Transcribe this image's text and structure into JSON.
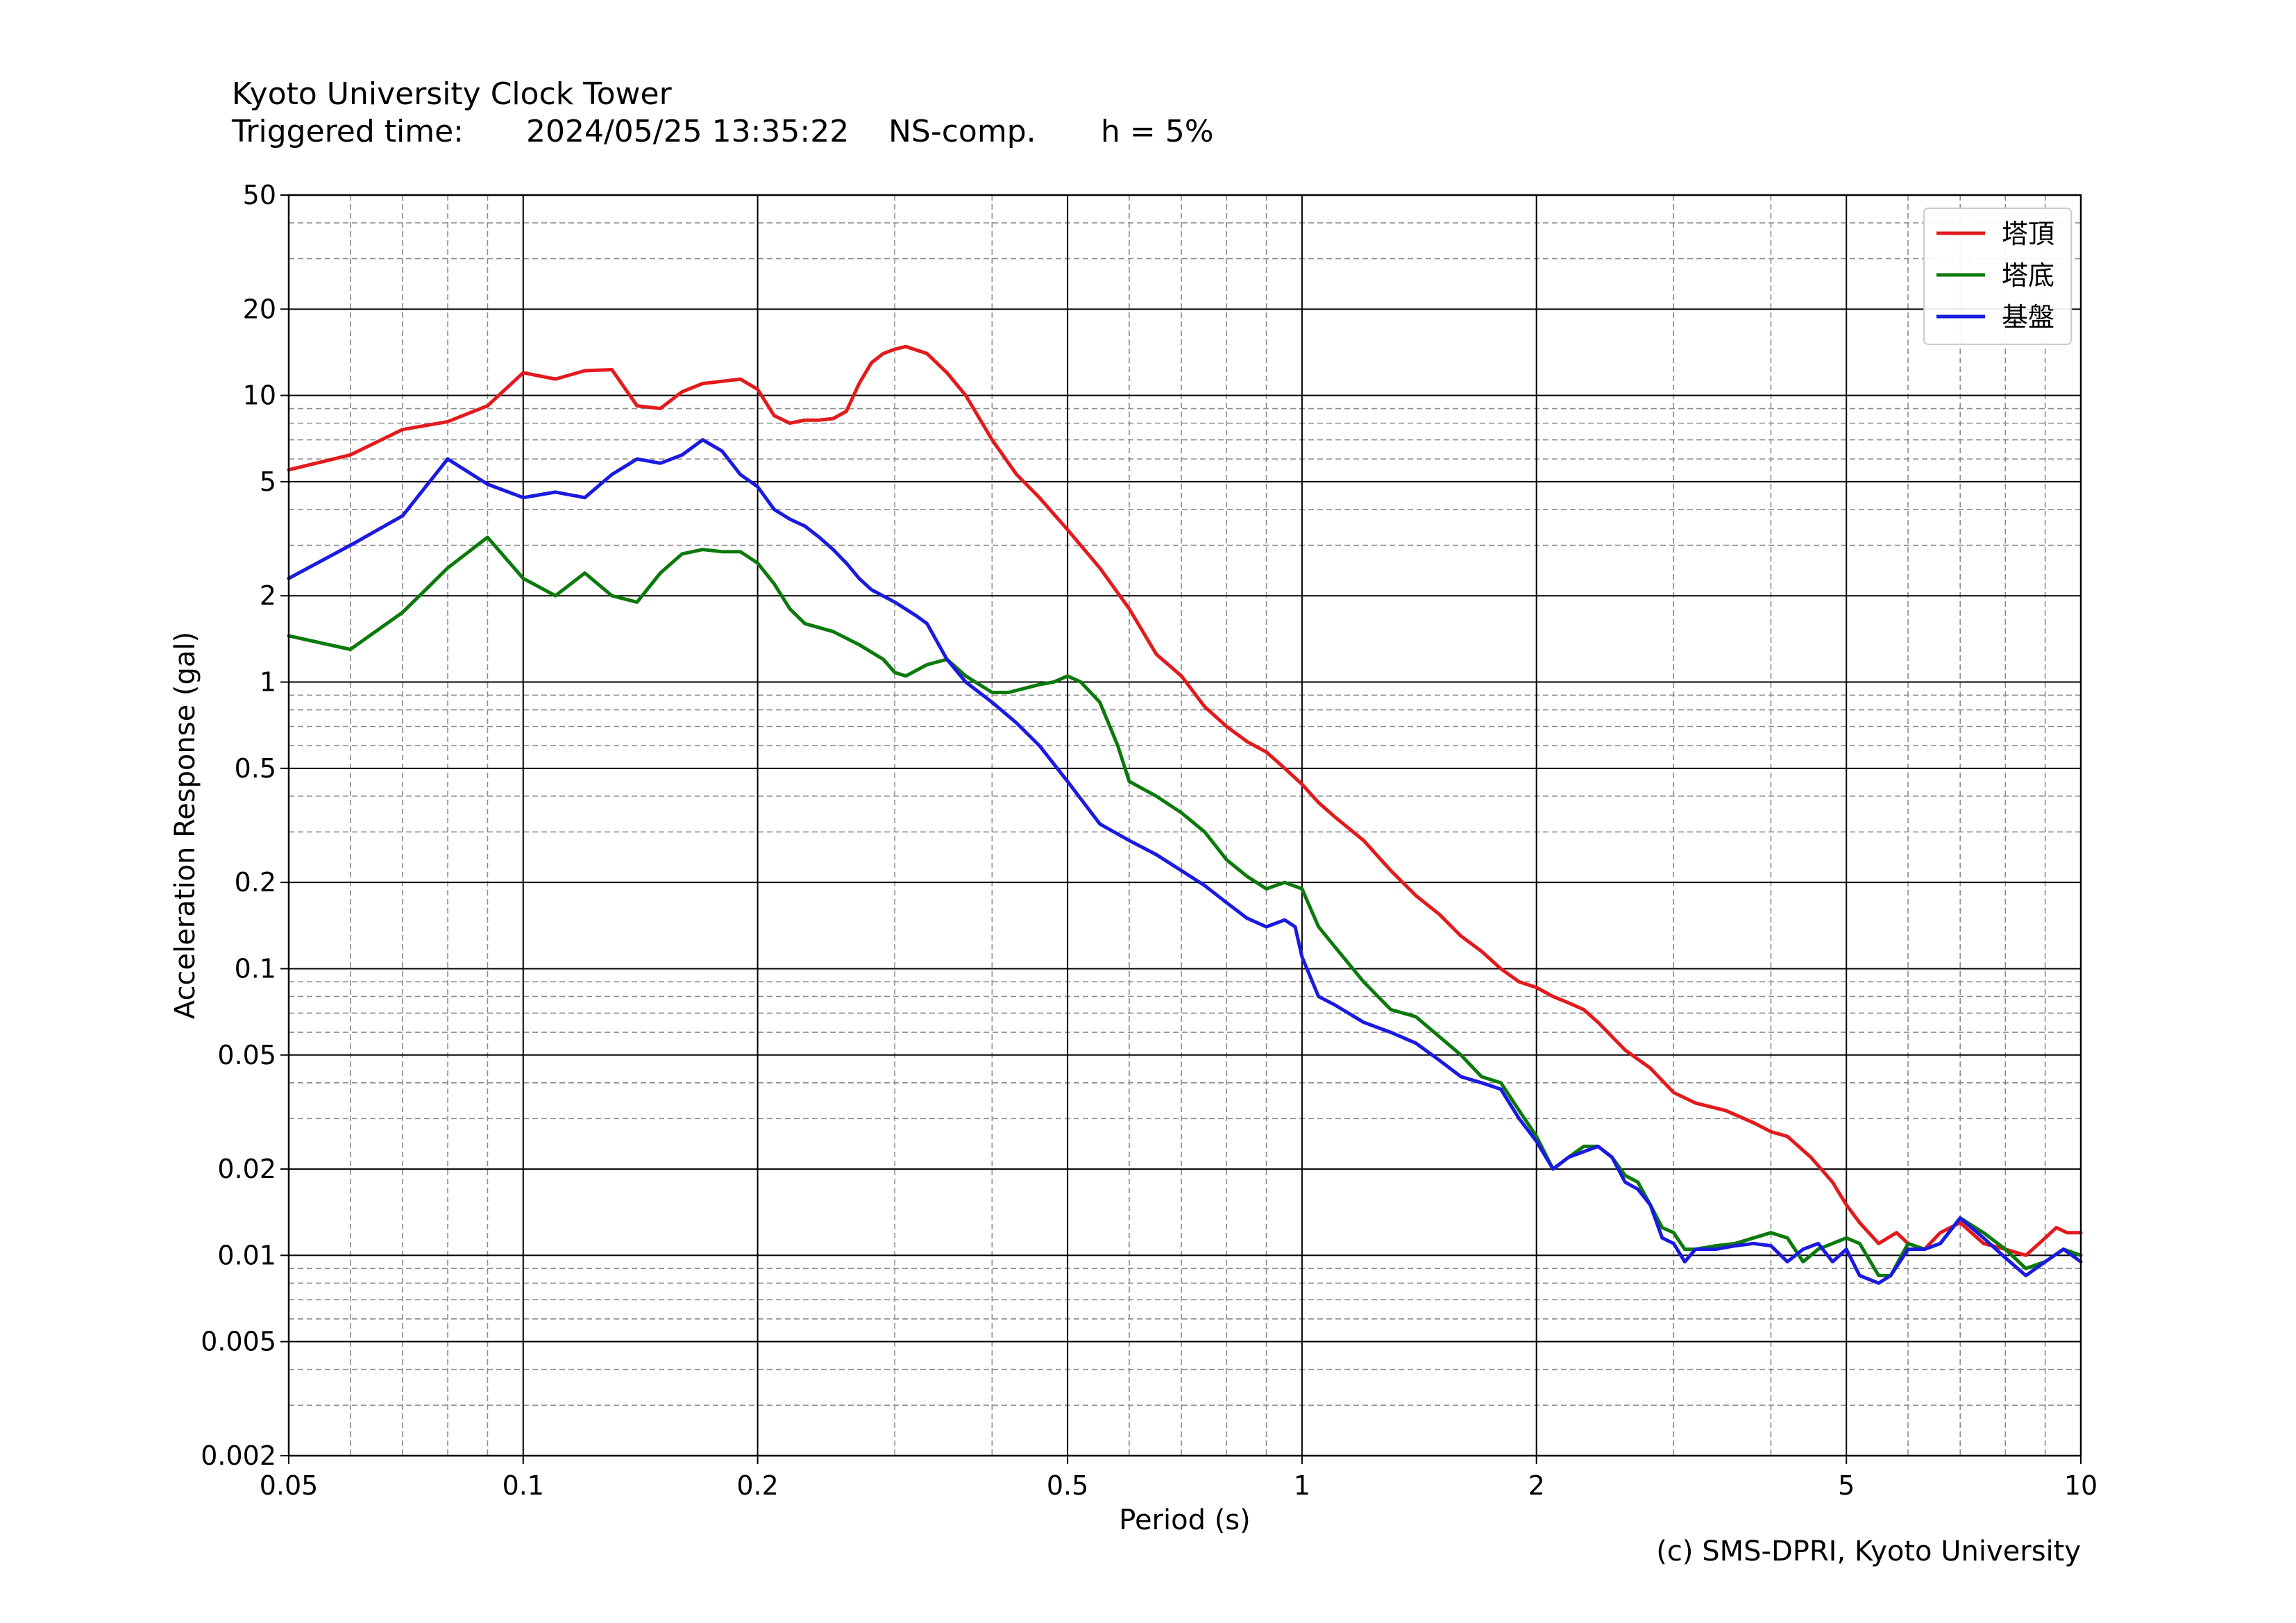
{
  "header": {
    "title": "Kyoto University Clock Tower",
    "triggered_label": "Triggered time:",
    "triggered_value": "2024/05/25 13:35:22",
    "component": "NS-comp.",
    "damping": "h = 5%"
  },
  "footer": {
    "credit": "(c) SMS-DPRI, Kyoto University"
  },
  "chart_data": {
    "type": "line",
    "xlabel": "Period (s)",
    "ylabel": "Acceleration Response (gal)",
    "xscale": "log",
    "yscale": "log",
    "xlim": [
      0.05,
      10
    ],
    "ylim": [
      0.002,
      50
    ],
    "xticks": [
      0.05,
      0.1,
      0.2,
      0.5,
      1,
      2,
      5,
      10
    ],
    "xtick_labels": [
      "0.05",
      "0.1",
      "0.2",
      "0.5",
      "1",
      "2",
      "5",
      "10"
    ],
    "yticks": [
      0.002,
      0.005,
      0.01,
      0.02,
      0.05,
      0.1,
      0.2,
      0.5,
      1,
      2,
      5,
      10,
      20,
      50
    ],
    "ytick_labels": [
      "0.002",
      "0.005",
      "0.01",
      "0.02",
      "0.05",
      "0.1",
      "0.2",
      "0.5",
      "1",
      "2",
      "5",
      "10",
      "20",
      "50"
    ],
    "grid": true,
    "legend": "top-right",
    "series": [
      {
        "name": "塔頂",
        "color": "#e31a1c",
        "x": [
          0.05,
          0.06,
          0.07,
          0.08,
          0.09,
          0.1,
          0.11,
          0.12,
          0.13,
          0.14,
          0.15,
          0.16,
          0.17,
          0.18,
          0.19,
          0.2,
          0.21,
          0.22,
          0.23,
          0.24,
          0.25,
          0.26,
          0.27,
          0.28,
          0.29,
          0.3,
          0.31,
          0.33,
          0.35,
          0.37,
          0.4,
          0.43,
          0.46,
          0.5,
          0.55,
          0.6,
          0.65,
          0.7,
          0.75,
          0.8,
          0.85,
          0.9,
          0.95,
          1.0,
          1.05,
          1.1,
          1.2,
          1.3,
          1.4,
          1.5,
          1.6,
          1.7,
          1.8,
          1.9,
          2.0,
          2.1,
          2.2,
          2.3,
          2.4,
          2.5,
          2.6,
          2.8,
          3.0,
          3.2,
          3.5,
          3.8,
          4.0,
          4.2,
          4.5,
          4.8,
          5.0,
          5.2,
          5.5,
          5.8,
          6.0,
          6.3,
          6.6,
          7.0,
          7.5,
          8.0,
          8.5,
          9.0,
          9.3,
          9.6,
          10.0
        ],
        "y": [
          5.5,
          6.2,
          7.6,
          8.1,
          9.2,
          12.0,
          11.4,
          12.2,
          12.3,
          9.2,
          9.0,
          10.3,
          11.0,
          11.2,
          11.4,
          10.5,
          8.5,
          8.0,
          8.2,
          8.2,
          8.3,
          8.8,
          11.0,
          13.0,
          14.0,
          14.5,
          14.8,
          14.0,
          12.0,
          10.0,
          7.0,
          5.3,
          4.4,
          3.4,
          2.5,
          1.8,
          1.25,
          1.05,
          0.82,
          0.7,
          0.62,
          0.57,
          0.5,
          0.44,
          0.38,
          0.34,
          0.28,
          0.22,
          0.18,
          0.155,
          0.13,
          0.115,
          0.1,
          0.09,
          0.086,
          0.08,
          0.076,
          0.072,
          0.065,
          0.058,
          0.052,
          0.045,
          0.037,
          0.034,
          0.032,
          0.029,
          0.027,
          0.026,
          0.022,
          0.018,
          0.015,
          0.013,
          0.011,
          0.012,
          0.011,
          0.0105,
          0.012,
          0.013,
          0.011,
          0.0105,
          0.01,
          0.0115,
          0.0125,
          0.012,
          0.012
        ]
      },
      {
        "name": "塔底",
        "color": "#0b7a0b",
        "x": [
          0.05,
          0.06,
          0.07,
          0.08,
          0.09,
          0.1,
          0.11,
          0.12,
          0.13,
          0.14,
          0.15,
          0.16,
          0.17,
          0.18,
          0.19,
          0.2,
          0.21,
          0.22,
          0.23,
          0.25,
          0.27,
          0.29,
          0.3,
          0.31,
          0.33,
          0.35,
          0.37,
          0.4,
          0.42,
          0.44,
          0.46,
          0.48,
          0.5,
          0.52,
          0.55,
          0.58,
          0.6,
          0.65,
          0.7,
          0.75,
          0.8,
          0.85,
          0.9,
          0.95,
          1.0,
          1.05,
          1.1,
          1.2,
          1.3,
          1.4,
          1.5,
          1.6,
          1.7,
          1.8,
          1.9,
          2.0,
          2.1,
          2.2,
          2.3,
          2.4,
          2.5,
          2.6,
          2.7,
          2.8,
          2.9,
          3.0,
          3.1,
          3.2,
          3.4,
          3.6,
          3.8,
          4.0,
          4.2,
          4.4,
          4.6,
          4.8,
          5.0,
          5.2,
          5.5,
          5.7,
          6.0,
          6.3,
          6.6,
          7.0,
          7.5,
          8.0,
          8.5,
          9.0,
          9.5,
          10.0
        ],
        "y": [
          1.45,
          1.3,
          1.75,
          2.5,
          3.2,
          2.3,
          2.0,
          2.4,
          2.0,
          1.9,
          2.4,
          2.8,
          2.9,
          2.85,
          2.85,
          2.6,
          2.2,
          1.8,
          1.6,
          1.5,
          1.35,
          1.2,
          1.08,
          1.05,
          1.15,
          1.2,
          1.05,
          0.92,
          0.92,
          0.95,
          0.98,
          1.0,
          1.05,
          1.0,
          0.85,
          0.6,
          0.45,
          0.4,
          0.35,
          0.3,
          0.24,
          0.21,
          0.19,
          0.2,
          0.19,
          0.14,
          0.12,
          0.09,
          0.072,
          0.068,
          0.058,
          0.05,
          0.042,
          0.04,
          0.032,
          0.026,
          0.02,
          0.022,
          0.024,
          0.024,
          0.022,
          0.019,
          0.018,
          0.015,
          0.0125,
          0.012,
          0.0105,
          0.0105,
          0.0108,
          0.011,
          0.0115,
          0.012,
          0.0115,
          0.0095,
          0.0105,
          0.011,
          0.0115,
          0.011,
          0.0085,
          0.0085,
          0.011,
          0.0105,
          0.011,
          0.0135,
          0.012,
          0.0105,
          0.009,
          0.0095,
          0.0105,
          0.01
        ]
      },
      {
        "name": "基盤",
        "color": "#1a1ae0",
        "x": [
          0.05,
          0.06,
          0.07,
          0.08,
          0.09,
          0.1,
          0.11,
          0.12,
          0.13,
          0.14,
          0.15,
          0.16,
          0.17,
          0.18,
          0.19,
          0.2,
          0.21,
          0.22,
          0.23,
          0.24,
          0.25,
          0.26,
          0.27,
          0.28,
          0.3,
          0.32,
          0.33,
          0.35,
          0.37,
          0.4,
          0.43,
          0.46,
          0.5,
          0.55,
          0.6,
          0.65,
          0.7,
          0.75,
          0.8,
          0.85,
          0.9,
          0.95,
          0.98,
          1.0,
          1.05,
          1.1,
          1.2,
          1.3,
          1.4,
          1.5,
          1.6,
          1.7,
          1.8,
          1.9,
          2.0,
          2.1,
          2.2,
          2.3,
          2.4,
          2.5,
          2.6,
          2.7,
          2.8,
          2.9,
          3.0,
          3.1,
          3.2,
          3.4,
          3.6,
          3.8,
          4.0,
          4.2,
          4.4,
          4.6,
          4.8,
          5.0,
          5.2,
          5.5,
          5.7,
          6.0,
          6.3,
          6.6,
          7.0,
          7.5,
          8.0,
          8.5,
          9.0,
          9.5,
          10.0
        ],
        "y": [
          2.3,
          3.0,
          3.8,
          6.0,
          4.9,
          4.4,
          4.6,
          4.4,
          5.3,
          6.0,
          5.8,
          6.2,
          7.0,
          6.4,
          5.3,
          4.8,
          4.0,
          3.7,
          3.5,
          3.2,
          2.9,
          2.6,
          2.3,
          2.1,
          1.9,
          1.7,
          1.6,
          1.2,
          1.0,
          0.85,
          0.72,
          0.6,
          0.45,
          0.32,
          0.28,
          0.25,
          0.22,
          0.195,
          0.17,
          0.15,
          0.14,
          0.148,
          0.14,
          0.11,
          0.08,
          0.075,
          0.065,
          0.06,
          0.055,
          0.048,
          0.042,
          0.04,
          0.038,
          0.03,
          0.025,
          0.02,
          0.022,
          0.023,
          0.024,
          0.022,
          0.018,
          0.017,
          0.015,
          0.0115,
          0.011,
          0.0095,
          0.0105,
          0.0105,
          0.0108,
          0.011,
          0.0108,
          0.0095,
          0.0105,
          0.011,
          0.0095,
          0.0105,
          0.0085,
          0.008,
          0.0085,
          0.0105,
          0.0105,
          0.011,
          0.0135,
          0.0115,
          0.0098,
          0.0085,
          0.0095,
          0.0105,
          0.0095
        ]
      }
    ]
  }
}
